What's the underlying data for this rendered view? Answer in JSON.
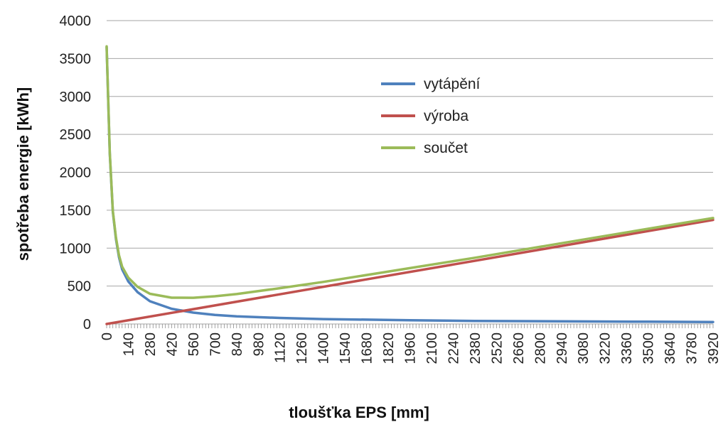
{
  "chart_data": {
    "type": "line",
    "xlabel": "tloušťka EPS [mm]",
    "ylabel": "spotřeba energie [kWh]",
    "xlim": [
      0,
      3920
    ],
    "ylim": [
      0,
      4000
    ],
    "x_ticks": [
      "0",
      "140",
      "280",
      "420",
      "560",
      "700",
      "840",
      "980",
      "1120",
      "1260",
      "1400",
      "1540",
      "1680",
      "1820",
      "1960",
      "2100",
      "2240",
      "2380",
      "2520",
      "2660",
      "2800",
      "2940",
      "3080",
      "3220",
      "3360",
      "3500",
      "3640",
      "3780",
      "3920"
    ],
    "y_ticks": [
      "0",
      "500",
      "1000",
      "1500",
      "2000",
      "2500",
      "3000",
      "3500",
      "4000"
    ],
    "grid": "horizontal",
    "legend_position": "upper-center",
    "series": [
      {
        "name": "vytápění",
        "color": "#4f81bd",
        "x": [
          0,
          20,
          40,
          60,
          80,
          100,
          140,
          200,
          280,
          420,
          560,
          700,
          840,
          1120,
          1400,
          1960,
          2380,
          2940,
          3500,
          3920
        ],
        "y": [
          3650,
          2250,
          1480,
          1120,
          880,
          720,
          560,
          420,
          300,
          200,
          150,
          120,
          100,
          80,
          65,
          50,
          40,
          35,
          30,
          25
        ]
      },
      {
        "name": "výroba",
        "color": "#c0504d",
        "x": [
          0,
          560,
          1120,
          1680,
          2240,
          2800,
          3360,
          3920
        ],
        "y": [
          0,
          196,
          392,
          588,
          784,
          980,
          1176,
          1372
        ]
      },
      {
        "name": "součet",
        "color": "#9bbb59",
        "x": [
          0,
          20,
          40,
          60,
          80,
          100,
          140,
          200,
          280,
          420,
          560,
          700,
          840,
          1120,
          1400,
          1960,
          2380,
          2940,
          3500,
          3920
        ],
        "y": [
          3660,
          2260,
          1490,
          1140,
          905,
          755,
          610,
          490,
          398,
          347,
          346,
          365,
          394,
          472,
          555,
          736,
          873,
          1065,
          1255,
          1397
        ]
      }
    ]
  }
}
